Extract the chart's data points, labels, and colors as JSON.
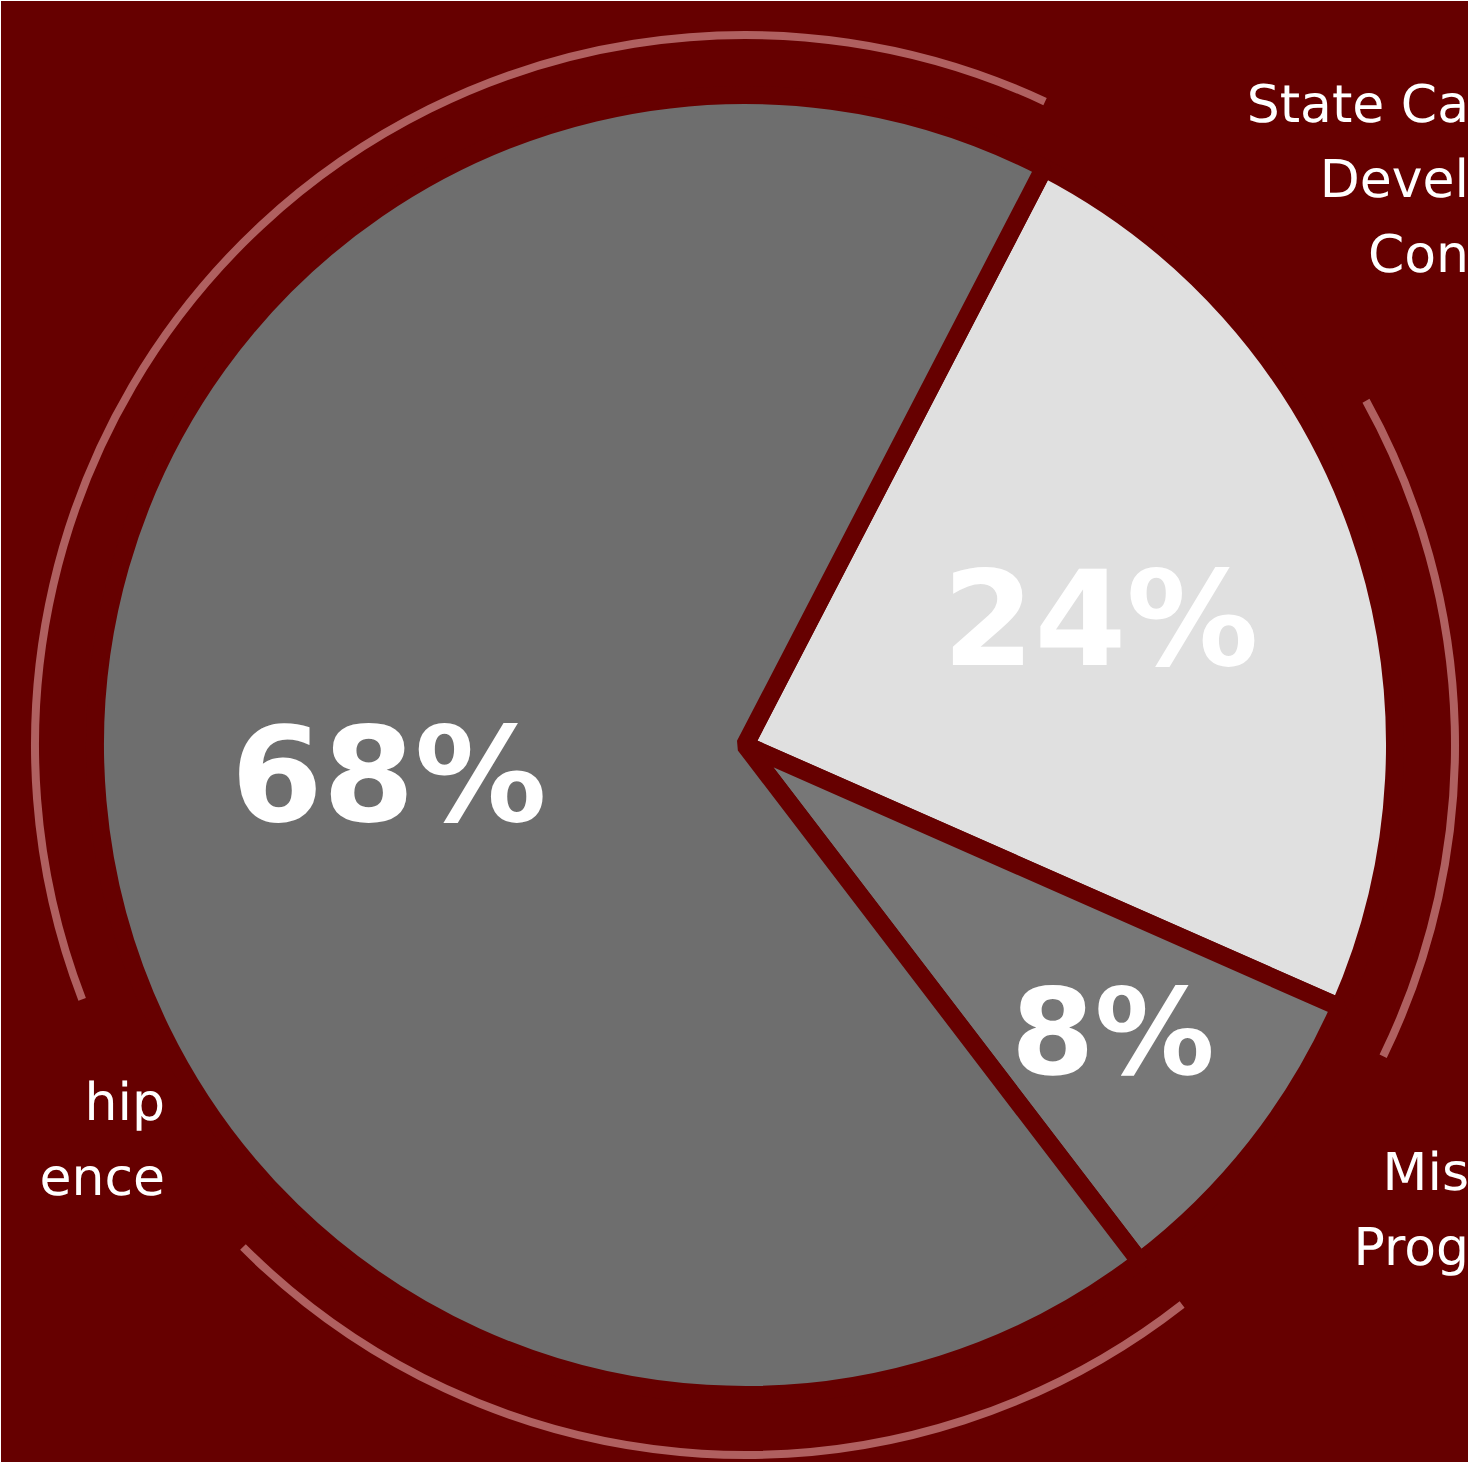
{
  "chart_data": {
    "type": "pie",
    "categories": [
      "State Ca\nDevel\nCon",
      "Mis\nProg",
      "hip\nence"
    ],
    "values": [
      24,
      8,
      68
    ],
    "colors": [
      "#e0e0e0",
      "#777777",
      "#6e6e6e"
    ],
    "value_labels": [
      "24%",
      "8%",
      "68%"
    ]
  }
}
